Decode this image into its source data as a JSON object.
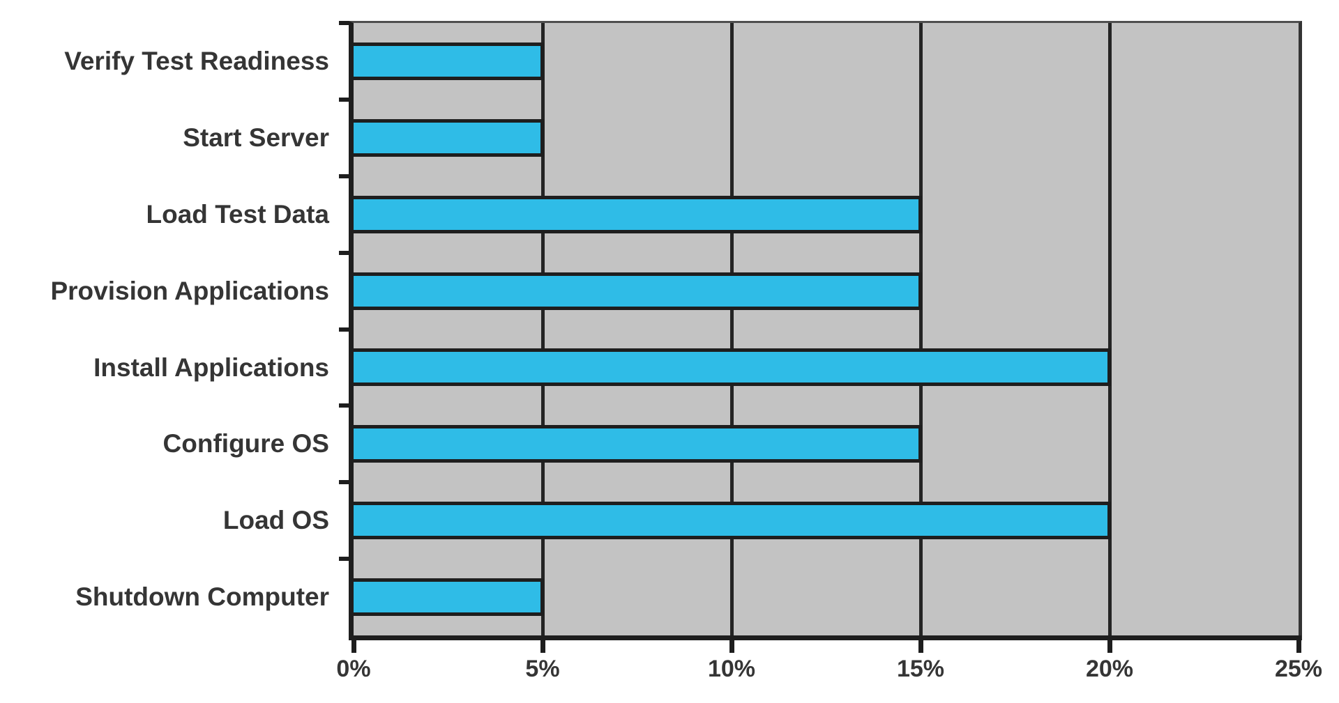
{
  "chart_data": {
    "type": "bar",
    "orientation": "horizontal",
    "title": "",
    "xlabel": "",
    "ylabel": "",
    "legend_position": "none",
    "categories": [
      "Verify Test Readiness",
      "Start Server",
      "Load Test Data",
      "Provision Applications",
      "Install Applications",
      "Configure OS",
      "Load OS",
      "Shutdown Computer"
    ],
    "values": [
      5,
      5,
      15,
      15,
      20,
      15,
      20,
      5
    ],
    "value_unit": "%",
    "xlim": [
      0,
      25
    ],
    "x_tick_step": 5,
    "x_tick_labels": [
      "0%",
      "5%",
      "10%",
      "15%",
      "20%",
      "25%"
    ],
    "grid": "vertical-only",
    "gridline_positions_pct": [
      5,
      10,
      15,
      20
    ],
    "colors": {
      "bar_fill": "#2FBCE7",
      "bar_border": "#1e1e1e",
      "plot_background": "#c3c3c3",
      "gridline": "#242424",
      "axis_line": "#1e1e1e",
      "text": "#353535",
      "page_background": "#ffffff"
    }
  }
}
